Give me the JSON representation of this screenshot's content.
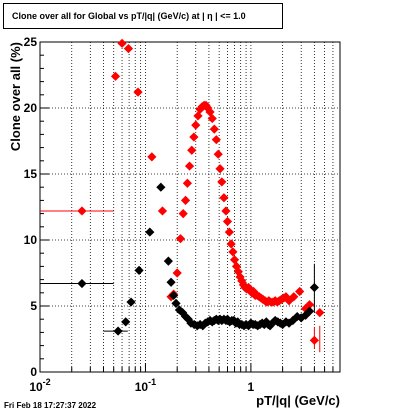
{
  "title": "Clone  over all for Global vs pT/|q| (GeV/c) at |  η  | <= 1.0",
  "footer": "Fri Feb 18 17:27:37 2022",
  "colors": {
    "series_red": "#ff0000",
    "series_black": "#000000",
    "grid": "#000000"
  },
  "chart_data": {
    "type": "scatter",
    "title": "Clone  over all for Global vs pT/|q| (GeV/c) at |  η  | <= 1.0",
    "xlabel": "pT/|q| (GeV/c)",
    "ylabel": "Clone  over all (%)",
    "xscale": "log",
    "xlim": [
      0.01,
      7
    ],
    "ylim": [
      0,
      25
    ],
    "grid": true,
    "legend": "none",
    "x_ticks": [
      {
        "value": 0.01,
        "label": "10",
        "exp": "-2"
      },
      {
        "value": 0.1,
        "label": "10",
        "exp": "-1"
      },
      {
        "value": 1,
        "label": "1",
        "exp": ""
      }
    ],
    "y_ticks": [
      0,
      5,
      10,
      15,
      20,
      25
    ],
    "series": [
      {
        "color": "#ff0000",
        "points": [
          {
            "x": 0.025,
            "y": 12.2,
            "xerr": [
              0.01,
              0.05
            ]
          },
          {
            "x": 0.052,
            "y": 22.4
          },
          {
            "x": 0.06,
            "y": 24.9
          },
          {
            "x": 0.069,
            "y": 24.5
          },
          {
            "x": 0.085,
            "y": 21.2
          },
          {
            "x": 0.115,
            "y": 16.3
          },
          {
            "x": 0.145,
            "y": 12.2
          },
          {
            "x": 0.175,
            "y": 5.7
          },
          {
            "x": 0.185,
            "y": 5.9
          },
          {
            "x": 0.2,
            "y": 7.5
          },
          {
            "x": 0.215,
            "y": 10.1
          },
          {
            "x": 0.228,
            "y": 12.0
          },
          {
            "x": 0.24,
            "y": 13.0
          },
          {
            "x": 0.25,
            "y": 14.3
          },
          {
            "x": 0.262,
            "y": 15.6
          },
          {
            "x": 0.275,
            "y": 16.8
          },
          {
            "x": 0.288,
            "y": 17.8
          },
          {
            "x": 0.3,
            "y": 18.7
          },
          {
            "x": 0.315,
            "y": 19.4
          },
          {
            "x": 0.33,
            "y": 19.9
          },
          {
            "x": 0.345,
            "y": 20.1
          },
          {
            "x": 0.36,
            "y": 20.2
          },
          {
            "x": 0.375,
            "y": 20.2
          },
          {
            "x": 0.39,
            "y": 20.0
          },
          {
            "x": 0.41,
            "y": 19.7
          },
          {
            "x": 0.43,
            "y": 19.2
          },
          {
            "x": 0.45,
            "y": 18.4
          },
          {
            "x": 0.47,
            "y": 17.6
          },
          {
            "x": 0.49,
            "y": 16.5
          },
          {
            "x": 0.51,
            "y": 15.4
          },
          {
            "x": 0.53,
            "y": 14.4
          },
          {
            "x": 0.555,
            "y": 13.2
          },
          {
            "x": 0.58,
            "y": 12.2
          },
          {
            "x": 0.6,
            "y": 11.4
          },
          {
            "x": 0.625,
            "y": 10.6
          },
          {
            "x": 0.65,
            "y": 9.7
          },
          {
            "x": 0.675,
            "y": 9.1
          },
          {
            "x": 0.7,
            "y": 8.5
          },
          {
            "x": 0.73,
            "y": 8.0
          },
          {
            "x": 0.76,
            "y": 7.6
          },
          {
            "x": 0.79,
            "y": 7.2
          },
          {
            "x": 0.82,
            "y": 6.9
          },
          {
            "x": 0.85,
            "y": 6.6
          },
          {
            "x": 0.88,
            "y": 6.4
          },
          {
            "x": 0.91,
            "y": 6.3
          },
          {
            "x": 0.95,
            "y": 6.4
          },
          {
            "x": 0.98,
            "y": 6.2
          },
          {
            "x": 1.02,
            "y": 6.0
          },
          {
            "x": 1.06,
            "y": 6.1
          },
          {
            "x": 1.1,
            "y": 5.8
          },
          {
            "x": 1.15,
            "y": 5.8
          },
          {
            "x": 1.2,
            "y": 5.7
          },
          {
            "x": 1.25,
            "y": 5.6
          },
          {
            "x": 1.3,
            "y": 5.5
          },
          {
            "x": 1.36,
            "y": 5.4
          },
          {
            "x": 1.42,
            "y": 5.3
          },
          {
            "x": 1.48,
            "y": 5.4
          },
          {
            "x": 1.55,
            "y": 5.3
          },
          {
            "x": 1.62,
            "y": 5.3
          },
          {
            "x": 1.7,
            "y": 5.4
          },
          {
            "x": 1.78,
            "y": 5.3
          },
          {
            "x": 1.86,
            "y": 5.4
          },
          {
            "x": 1.95,
            "y": 5.5
          },
          {
            "x": 2.05,
            "y": 5.6
          },
          {
            "x": 2.15,
            "y": 5.7
          },
          {
            "x": 2.3,
            "y": 5.4
          },
          {
            "x": 2.55,
            "y": 5.7
          },
          {
            "x": 2.9,
            "y": 6.1
          },
          {
            "x": 3.3,
            "y": 4.8
          },
          {
            "x": 3.6,
            "y": 5.1
          },
          {
            "x": 4.0,
            "y": 2.4,
            "yerr": [
              1.8,
              3.4
            ]
          },
          {
            "x": 4.5,
            "y": 4.5,
            "yerr": [
              3.5,
              1.5
            ]
          }
        ]
      },
      {
        "color": "#000000",
        "points": [
          {
            "x": 0.025,
            "y": 6.7,
            "xerr": [
              0.01,
              0.05
            ]
          },
          {
            "x": 0.055,
            "y": 3.1,
            "xerr": [
              0.04,
              0.068
            ]
          },
          {
            "x": 0.065,
            "y": 3.8
          },
          {
            "x": 0.073,
            "y": 5.3
          },
          {
            "x": 0.087,
            "y": 7.7
          },
          {
            "x": 0.11,
            "y": 10.6
          },
          {
            "x": 0.14,
            "y": 14.0
          },
          {
            "x": 0.165,
            "y": 8.4
          },
          {
            "x": 0.175,
            "y": 6.8
          },
          {
            "x": 0.185,
            "y": 5.8
          },
          {
            "x": 0.195,
            "y": 5.2
          },
          {
            "x": 0.21,
            "y": 4.7
          },
          {
            "x": 0.225,
            "y": 4.5
          },
          {
            "x": 0.24,
            "y": 4.2
          },
          {
            "x": 0.255,
            "y": 4.0
          },
          {
            "x": 0.27,
            "y": 3.7
          },
          {
            "x": 0.29,
            "y": 3.6
          },
          {
            "x": 0.31,
            "y": 3.5
          },
          {
            "x": 0.33,
            "y": 3.6
          },
          {
            "x": 0.35,
            "y": 3.5
          },
          {
            "x": 0.37,
            "y": 3.7
          },
          {
            "x": 0.39,
            "y": 3.8
          },
          {
            "x": 0.41,
            "y": 3.9
          },
          {
            "x": 0.43,
            "y": 3.8
          },
          {
            "x": 0.45,
            "y": 3.9
          },
          {
            "x": 0.47,
            "y": 4.0
          },
          {
            "x": 0.49,
            "y": 3.9
          },
          {
            "x": 0.51,
            "y": 4.0
          },
          {
            "x": 0.53,
            "y": 3.9
          },
          {
            "x": 0.555,
            "y": 4.0
          },
          {
            "x": 0.58,
            "y": 3.9
          },
          {
            "x": 0.6,
            "y": 4.0
          },
          {
            "x": 0.63,
            "y": 3.8
          },
          {
            "x": 0.66,
            "y": 3.9
          },
          {
            "x": 0.69,
            "y": 3.9
          },
          {
            "x": 0.72,
            "y": 3.7
          },
          {
            "x": 0.75,
            "y": 3.8
          },
          {
            "x": 0.78,
            "y": 3.6
          },
          {
            "x": 0.82,
            "y": 3.6
          },
          {
            "x": 0.86,
            "y": 3.5
          },
          {
            "x": 0.9,
            "y": 3.6
          },
          {
            "x": 0.95,
            "y": 3.5
          },
          {
            "x": 1.0,
            "y": 3.7
          },
          {
            "x": 1.05,
            "y": 3.6
          },
          {
            "x": 1.1,
            "y": 3.6
          },
          {
            "x": 1.16,
            "y": 3.5
          },
          {
            "x": 1.22,
            "y": 3.6
          },
          {
            "x": 1.28,
            "y": 3.7
          },
          {
            "x": 1.34,
            "y": 3.6
          },
          {
            "x": 1.4,
            "y": 3.8
          },
          {
            "x": 1.46,
            "y": 3.6
          },
          {
            "x": 1.52,
            "y": 3.5
          },
          {
            "x": 1.6,
            "y": 3.7
          },
          {
            "x": 1.7,
            "y": 3.9
          },
          {
            "x": 1.8,
            "y": 3.8
          },
          {
            "x": 1.9,
            "y": 3.7
          },
          {
            "x": 2.0,
            "y": 3.6
          },
          {
            "x": 2.15,
            "y": 3.8
          },
          {
            "x": 2.3,
            "y": 3.7
          },
          {
            "x": 2.5,
            "y": 3.9
          },
          {
            "x": 2.75,
            "y": 4.2
          },
          {
            "x": 3.0,
            "y": 4.1
          },
          {
            "x": 3.3,
            "y": 4.3
          },
          {
            "x": 3.6,
            "y": 4.6
          },
          {
            "x": 4.0,
            "y": 6.4,
            "yerr": [
              4.5,
              8.2
            ]
          }
        ]
      }
    ]
  }
}
